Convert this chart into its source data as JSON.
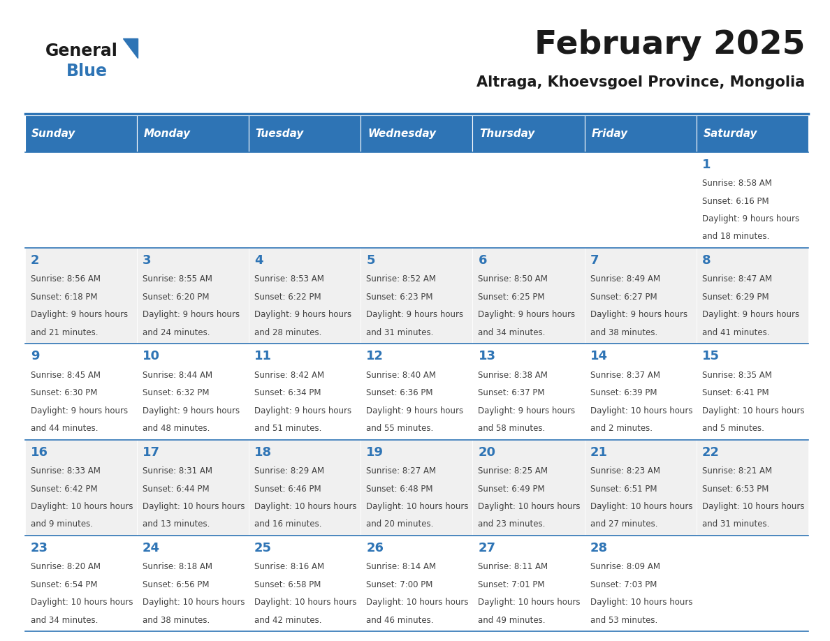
{
  "title": "February 2025",
  "subtitle": "Altraga, Khoevsgoel Province, Mongolia",
  "days_of_week": [
    "Sunday",
    "Monday",
    "Tuesday",
    "Wednesday",
    "Thursday",
    "Friday",
    "Saturday"
  ],
  "header_bg": "#2E74B5",
  "header_text": "#FFFFFF",
  "row_bg_even": "#FFFFFF",
  "row_bg_odd": "#F0F0F0",
  "cell_border": "#2E74B5",
  "day_num_color": "#2E74B5",
  "info_text_color": "#404040",
  "title_color": "#1A1A1A",
  "subtitle_color": "#1A1A1A",
  "logo_general_color": "#1A1A1A",
  "logo_blue_color": "#2E74B5",
  "logo_triangle_color": "#2E74B5",
  "separator_color": "#2E74B5",
  "calendar": [
    [
      null,
      null,
      null,
      null,
      null,
      null,
      {
        "day": 1,
        "sunrise": "8:58 AM",
        "sunset": "6:16 PM",
        "daylight": "9 hours and 18 minutes."
      }
    ],
    [
      {
        "day": 2,
        "sunrise": "8:56 AM",
        "sunset": "6:18 PM",
        "daylight": "9 hours and 21 minutes."
      },
      {
        "day": 3,
        "sunrise": "8:55 AM",
        "sunset": "6:20 PM",
        "daylight": "9 hours and 24 minutes."
      },
      {
        "day": 4,
        "sunrise": "8:53 AM",
        "sunset": "6:22 PM",
        "daylight": "9 hours and 28 minutes."
      },
      {
        "day": 5,
        "sunrise": "8:52 AM",
        "sunset": "6:23 PM",
        "daylight": "9 hours and 31 minutes."
      },
      {
        "day": 6,
        "sunrise": "8:50 AM",
        "sunset": "6:25 PM",
        "daylight": "9 hours and 34 minutes."
      },
      {
        "day": 7,
        "sunrise": "8:49 AM",
        "sunset": "6:27 PM",
        "daylight": "9 hours and 38 minutes."
      },
      {
        "day": 8,
        "sunrise": "8:47 AM",
        "sunset": "6:29 PM",
        "daylight": "9 hours and 41 minutes."
      }
    ],
    [
      {
        "day": 9,
        "sunrise": "8:45 AM",
        "sunset": "6:30 PM",
        "daylight": "9 hours and 44 minutes."
      },
      {
        "day": 10,
        "sunrise": "8:44 AM",
        "sunset": "6:32 PM",
        "daylight": "9 hours and 48 minutes."
      },
      {
        "day": 11,
        "sunrise": "8:42 AM",
        "sunset": "6:34 PM",
        "daylight": "9 hours and 51 minutes."
      },
      {
        "day": 12,
        "sunrise": "8:40 AM",
        "sunset": "6:36 PM",
        "daylight": "9 hours and 55 minutes."
      },
      {
        "day": 13,
        "sunrise": "8:38 AM",
        "sunset": "6:37 PM",
        "daylight": "9 hours and 58 minutes."
      },
      {
        "day": 14,
        "sunrise": "8:37 AM",
        "sunset": "6:39 PM",
        "daylight": "10 hours and 2 minutes."
      },
      {
        "day": 15,
        "sunrise": "8:35 AM",
        "sunset": "6:41 PM",
        "daylight": "10 hours and 5 minutes."
      }
    ],
    [
      {
        "day": 16,
        "sunrise": "8:33 AM",
        "sunset": "6:42 PM",
        "daylight": "10 hours and 9 minutes."
      },
      {
        "day": 17,
        "sunrise": "8:31 AM",
        "sunset": "6:44 PM",
        "daylight": "10 hours and 13 minutes."
      },
      {
        "day": 18,
        "sunrise": "8:29 AM",
        "sunset": "6:46 PM",
        "daylight": "10 hours and 16 minutes."
      },
      {
        "day": 19,
        "sunrise": "8:27 AM",
        "sunset": "6:48 PM",
        "daylight": "10 hours and 20 minutes."
      },
      {
        "day": 20,
        "sunrise": "8:25 AM",
        "sunset": "6:49 PM",
        "daylight": "10 hours and 23 minutes."
      },
      {
        "day": 21,
        "sunrise": "8:23 AM",
        "sunset": "6:51 PM",
        "daylight": "10 hours and 27 minutes."
      },
      {
        "day": 22,
        "sunrise": "8:21 AM",
        "sunset": "6:53 PM",
        "daylight": "10 hours and 31 minutes."
      }
    ],
    [
      {
        "day": 23,
        "sunrise": "8:20 AM",
        "sunset": "6:54 PM",
        "daylight": "10 hours and 34 minutes."
      },
      {
        "day": 24,
        "sunrise": "8:18 AM",
        "sunset": "6:56 PM",
        "daylight": "10 hours and 38 minutes."
      },
      {
        "day": 25,
        "sunrise": "8:16 AM",
        "sunset": "6:58 PM",
        "daylight": "10 hours and 42 minutes."
      },
      {
        "day": 26,
        "sunrise": "8:14 AM",
        "sunset": "7:00 PM",
        "daylight": "10 hours and 46 minutes."
      },
      {
        "day": 27,
        "sunrise": "8:11 AM",
        "sunset": "7:01 PM",
        "daylight": "10 hours and 49 minutes."
      },
      {
        "day": 28,
        "sunrise": "8:09 AM",
        "sunset": "7:03 PM",
        "daylight": "10 hours and 53 minutes."
      },
      null
    ]
  ]
}
